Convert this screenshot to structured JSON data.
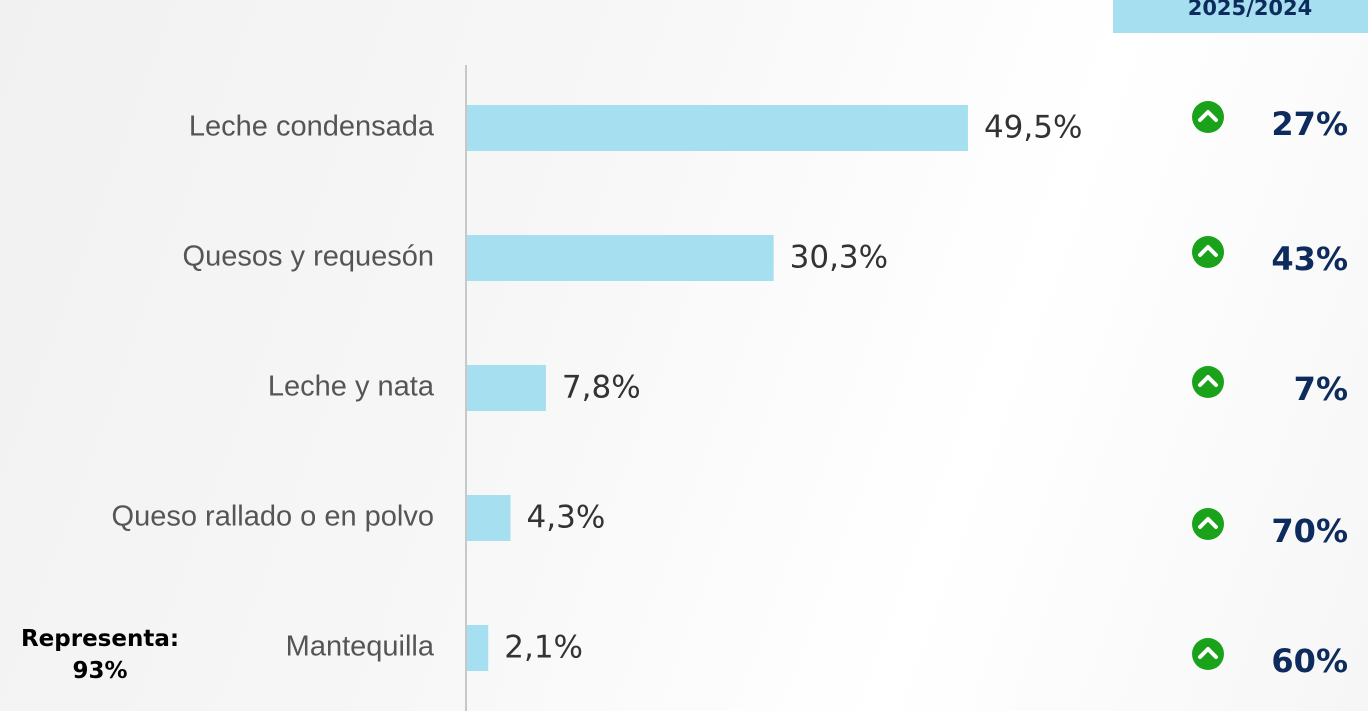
{
  "chart_data": {
    "type": "bar",
    "orientation": "horizontal",
    "categories": [
      "Leche condensada",
      "Quesos y requesón",
      "Leche y nata",
      "Queso rallado o en polvo",
      "Mantequilla"
    ],
    "values": [
      49.5,
      30.3,
      7.8,
      4.3,
      2.1
    ],
    "value_labels": [
      "49,5%",
      "30,3%",
      "7,8%",
      "4,3%",
      "2,1%"
    ],
    "color": "#a6dff0",
    "xlim": [
      0,
      50
    ],
    "growth_header": "2025/2024",
    "growth": {
      "values": [
        27,
        43,
        7,
        70,
        60
      ],
      "value_labels": [
        "27%",
        "43%",
        "7%",
        "70%",
        "60%"
      ],
      "color": "#1aa31a"
    },
    "annotation": "Representa: 93%"
  }
}
